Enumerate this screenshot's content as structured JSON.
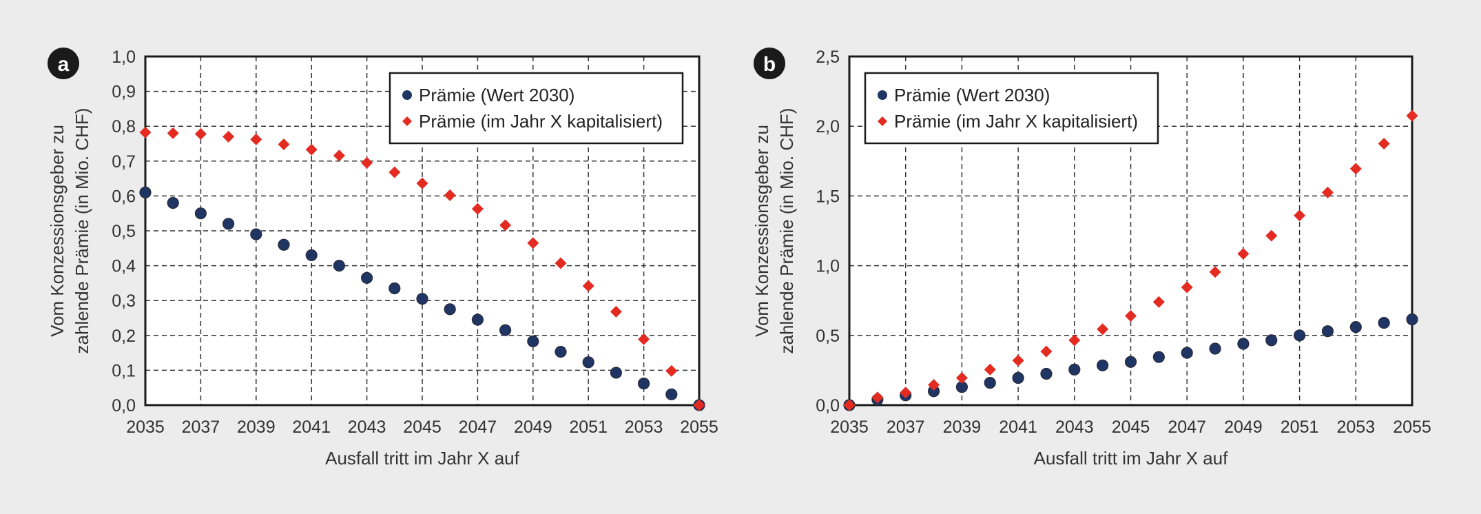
{
  "colors": {
    "background": "#ececec",
    "plot_bg": "#ffffff",
    "series1": "#1f3563",
    "series2": "#e32b22",
    "grid": "#333333",
    "badge": "#1a1a1a"
  },
  "chart_data": [
    {
      "type": "scatter",
      "panel_label": "a",
      "title": "",
      "xlabel": "Ausfall tritt im Jahr X auf",
      "ylabel_lines": [
        "Vom Konzessionsgeber zu",
        "zahlende Prämie (in Mio. CHF)"
      ],
      "xlim": [
        2035,
        2055
      ],
      "ylim": [
        0,
        1.0
      ],
      "grid": true,
      "legend_position": "top-right",
      "x_ticks": [
        "2035",
        "2037",
        "2039",
        "2041",
        "2043",
        "2045",
        "2047",
        "2049",
        "2051",
        "2053",
        "2055"
      ],
      "y_ticks": [
        "0,0",
        "0,1",
        "0,2",
        "0,3",
        "0,4",
        "0,5",
        "0,6",
        "0,7",
        "0,8",
        "0,9",
        "1,0"
      ],
      "x": [
        2035,
        2036,
        2037,
        2038,
        2039,
        2040,
        2041,
        2042,
        2043,
        2044,
        2045,
        2046,
        2047,
        2048,
        2049,
        2050,
        2051,
        2052,
        2053,
        2054,
        2055
      ],
      "series": [
        {
          "name": "Prämie (Wert 2030)",
          "marker": "circle",
          "values": [
            0.61,
            0.58,
            0.55,
            0.52,
            0.49,
            0.46,
            0.43,
            0.4,
            0.365,
            0.335,
            0.305,
            0.275,
            0.245,
            0.215,
            0.183,
            0.153,
            0.123,
            0.093,
            0.062,
            0.031,
            0.0
          ]
        },
        {
          "name": "Prämie (im Jahr X kapitalisiert)",
          "marker": "diamond",
          "values": [
            0.782,
            0.78,
            0.778,
            0.77,
            0.762,
            0.748,
            0.733,
            0.716,
            0.695,
            0.668,
            0.636,
            0.602,
            0.563,
            0.516,
            0.465,
            0.407,
            0.342,
            0.268,
            0.189,
            0.098,
            0.0
          ]
        }
      ]
    },
    {
      "type": "scatter",
      "panel_label": "b",
      "title": "",
      "xlabel": "Ausfall tritt im Jahr X auf",
      "ylabel_lines": [
        "Vom Konzessionsgeber zu",
        "zahlende Prämie (in Mio. CHF)"
      ],
      "xlim": [
        2035,
        2055
      ],
      "ylim": [
        0,
        2.5
      ],
      "grid": true,
      "legend_position": "top-left",
      "x_ticks": [
        "2035",
        "2037",
        "2039",
        "2041",
        "2043",
        "2045",
        "2047",
        "2049",
        "2051",
        "2053",
        "2055"
      ],
      "y_ticks": [
        "0,0",
        "0,5",
        "1,0",
        "1,5",
        "2,0",
        "2,5"
      ],
      "x": [
        2035,
        2036,
        2037,
        2038,
        2039,
        2040,
        2041,
        2042,
        2043,
        2044,
        2045,
        2046,
        2047,
        2048,
        2049,
        2050,
        2051,
        2052,
        2053,
        2054,
        2055
      ],
      "series": [
        {
          "name": "Prämie (Wert 2030)",
          "marker": "circle",
          "values": [
            0.0,
            0.04,
            0.07,
            0.1,
            0.13,
            0.16,
            0.195,
            0.225,
            0.255,
            0.285,
            0.31,
            0.345,
            0.375,
            0.405,
            0.44,
            0.465,
            0.5,
            0.53,
            0.56,
            0.59,
            0.615
          ]
        },
        {
          "name": "Prämie (im Jahr X kapitalisiert)",
          "marker": "diamond",
          "values": [
            0.0,
            0.055,
            0.09,
            0.145,
            0.195,
            0.255,
            0.32,
            0.385,
            0.465,
            0.545,
            0.64,
            0.74,
            0.845,
            0.955,
            1.085,
            1.215,
            1.36,
            1.525,
            1.695,
            1.875,
            2.075
          ]
        }
      ]
    }
  ]
}
